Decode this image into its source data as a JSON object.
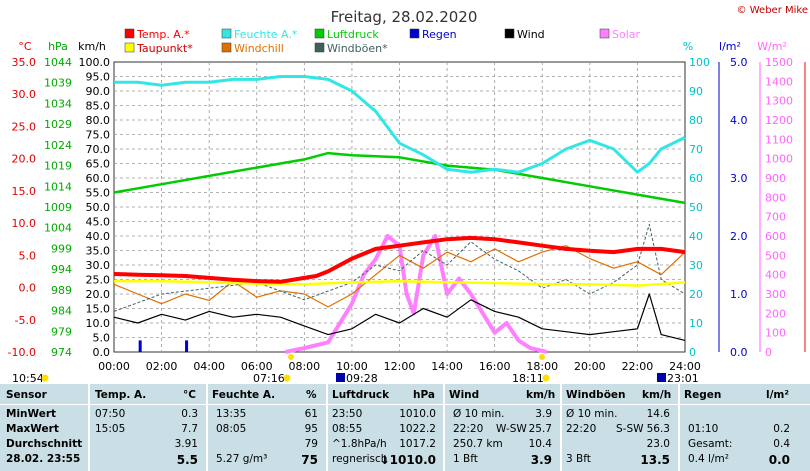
{
  "title": "Freitag, 28.02.2020",
  "copyright": "© Weber Mike",
  "chart_data": {
    "type": "line",
    "x_label": "time (hours)",
    "x_ticks": [
      "00:00",
      "02:00",
      "04:00",
      "06:00",
      "08:00",
      "10:00",
      "12:00",
      "14:00",
      "16:00",
      "18:00",
      "20:00",
      "22:00",
      "24:00"
    ],
    "axes": {
      "temp_c": {
        "label": "°C",
        "ticks": [
          "35.0",
          "30.0",
          "25.0",
          "20.0",
          "15.0",
          "10.0",
          "5.0",
          "0.0",
          "-5.0",
          "-10.0"
        ],
        "range": [
          -10,
          35
        ],
        "color": "#e00000"
      },
      "pressure_hpa": {
        "label": "hPa",
        "ticks": [
          "1044",
          "1039",
          "1034",
          "1029",
          "1024",
          "1019",
          "1014",
          "1009",
          "1004",
          "999",
          "994",
          "989",
          "984",
          "979",
          "974"
        ],
        "range": [
          974,
          1044
        ],
        "color": "#00aa00"
      },
      "wind_kmh": {
        "label": "km/h",
        "ticks": [
          "100.0",
          "95.0",
          "90.0",
          "85.0",
          "80.0",
          "75.0",
          "70.0",
          "65.0",
          "60.0",
          "55.0",
          "50.0",
          "45.0",
          "40.0",
          "35.0",
          "30.0",
          "25.0",
          "20.0",
          "15.0",
          "10.0",
          "5.0",
          "0.0"
        ],
        "range": [
          0,
          100
        ],
        "color": "#000000"
      },
      "humidity_pct": {
        "label": "%",
        "ticks": [
          "100",
          "90",
          "80",
          "70",
          "60",
          "50",
          "40",
          "30",
          "20",
          "10",
          "0"
        ],
        "range": [
          0,
          100
        ],
        "color": "#00c0d0"
      },
      "rain_lm2": {
        "label": "l/m²",
        "ticks": [
          "5.0",
          "4.0",
          "3.0",
          "2.0",
          "1.0",
          "0.0"
        ],
        "range": [
          0,
          5
        ],
        "color": "#0000cc"
      },
      "solar_wm2": {
        "label": "W/m²",
        "ticks": [
          "1500",
          "1400",
          "1300",
          "1200",
          "1100",
          "1000",
          "900",
          "800",
          "700",
          "600",
          "500",
          "400",
          "300",
          "200",
          "100",
          "0"
        ],
        "range": [
          0,
          1500
        ],
        "color": "#ff66ff"
      }
    },
    "legend": [
      {
        "name": "Temp. A.*",
        "color": "#ff0000"
      },
      {
        "name": "Feuchte A.*",
        "color": "#33e6e6"
      },
      {
        "name": "Luftdruck",
        "color": "#00cc00"
      },
      {
        "name": "Regen",
        "color": "#0000cc"
      },
      {
        "name": "Wind",
        "color": "#000000"
      },
      {
        "name": "Solar",
        "color": "#ff80ff"
      },
      {
        "name": "Taupunkt*",
        "color": "#ffff00"
      },
      {
        "name": "Windchill",
        "color": "#e07000"
      },
      {
        "name": "Windböen*",
        "color": "#406060"
      }
    ],
    "series": [
      {
        "name": "Temp. A.*",
        "axis": "temp_c",
        "color": "#ff0000",
        "points": [
          [
            0,
            2.1
          ],
          [
            1,
            2.0
          ],
          [
            2,
            1.9
          ],
          [
            3,
            1.8
          ],
          [
            4,
            1.5
          ],
          [
            5,
            1.2
          ],
          [
            6,
            1.0
          ],
          [
            7,
            0.9
          ],
          [
            8,
            1.5
          ],
          [
            8.5,
            1.8
          ],
          [
            9,
            2.5
          ],
          [
            10,
            4.5
          ],
          [
            11,
            6.0
          ],
          [
            12,
            6.5
          ],
          [
            13,
            7.0
          ],
          [
            14,
            7.5
          ],
          [
            15,
            7.7
          ],
          [
            16,
            7.5
          ],
          [
            17,
            7.0
          ],
          [
            18,
            6.5
          ],
          [
            19,
            6.0
          ],
          [
            20,
            5.7
          ],
          [
            21,
            5.5
          ],
          [
            22,
            6.0
          ],
          [
            23,
            6.0
          ],
          [
            24,
            5.5
          ]
        ]
      },
      {
        "name": "Feuchte A.*",
        "axis": "humidity_pct",
        "color": "#33e6e6",
        "points": [
          [
            0,
            93
          ],
          [
            1,
            93
          ],
          [
            2,
            92
          ],
          [
            3,
            93
          ],
          [
            4,
            93
          ],
          [
            5,
            94
          ],
          [
            6,
            94
          ],
          [
            7,
            95
          ],
          [
            8,
            95
          ],
          [
            9,
            94
          ],
          [
            10,
            90
          ],
          [
            11,
            83
          ],
          [
            12,
            72
          ],
          [
            13,
            68
          ],
          [
            14,
            63
          ],
          [
            15,
            62
          ],
          [
            16,
            63
          ],
          [
            17,
            62
          ],
          [
            18,
            65
          ],
          [
            19,
            70
          ],
          [
            20,
            73
          ],
          [
            21,
            70
          ],
          [
            22,
            62
          ],
          [
            22.5,
            65
          ],
          [
            23,
            70
          ],
          [
            24,
            74
          ]
        ]
      },
      {
        "name": "Luftdruck",
        "axis": "pressure_hpa",
        "color": "#00cc00",
        "points": [
          [
            0,
            1012.5
          ],
          [
            2,
            1014.5
          ],
          [
            4,
            1016.5
          ],
          [
            6,
            1018.5
          ],
          [
            8,
            1020.5
          ],
          [
            9,
            1022
          ],
          [
            10,
            1021.5
          ],
          [
            12,
            1021
          ],
          [
            14,
            1019
          ],
          [
            16,
            1018
          ],
          [
            18,
            1016
          ],
          [
            20,
            1014
          ],
          [
            22,
            1012
          ],
          [
            24,
            1010
          ]
        ]
      },
      {
        "name": "Taupunkt*",
        "axis": "temp_c",
        "color": "#ffff00",
        "points": [
          [
            0,
            1.0
          ],
          [
            2,
            1.0
          ],
          [
            4,
            0.8
          ],
          [
            6,
            0.6
          ],
          [
            8,
            0.5
          ],
          [
            10,
            0.8
          ],
          [
            12,
            1.0
          ],
          [
            14,
            0.8
          ],
          [
            16,
            0.7
          ],
          [
            18,
            0.5
          ],
          [
            20,
            0.5
          ],
          [
            22,
            0.3
          ],
          [
            24,
            0.8
          ]
        ]
      },
      {
        "name": "Windchill",
        "axis": "temp_c",
        "color": "#e07000",
        "points": [
          [
            0,
            0.5
          ],
          [
            1,
            -1.0
          ],
          [
            2,
            -2.5
          ],
          [
            3,
            -1.0
          ],
          [
            4,
            -2.0
          ],
          [
            5,
            1.0
          ],
          [
            6,
            -1.5
          ],
          [
            7,
            -0.5
          ],
          [
            8,
            -1.0
          ],
          [
            9,
            -3.0
          ],
          [
            10,
            -1.0
          ],
          [
            11,
            2.0
          ],
          [
            12,
            5.0
          ],
          [
            13,
            3.0
          ],
          [
            14,
            5.5
          ],
          [
            15,
            4.0
          ],
          [
            16,
            6.0
          ],
          [
            17,
            4.0
          ],
          [
            18,
            5.5
          ],
          [
            19,
            6.5
          ],
          [
            20,
            4.5
          ],
          [
            21,
            3.0
          ],
          [
            22,
            4.0
          ],
          [
            23,
            2.0
          ],
          [
            24,
            5.5
          ]
        ]
      },
      {
        "name": "Windböen*",
        "axis": "wind_kmh",
        "color": "#406060",
        "points": [
          [
            0,
            14
          ],
          [
            2,
            20
          ],
          [
            4,
            22
          ],
          [
            6,
            24
          ],
          [
            8,
            18
          ],
          [
            10,
            24
          ],
          [
            11,
            30
          ],
          [
            12,
            28
          ],
          [
            13,
            35
          ],
          [
            14,
            30
          ],
          [
            15,
            38
          ],
          [
            16,
            32
          ],
          [
            17,
            28
          ],
          [
            18,
            22
          ],
          [
            19,
            25
          ],
          [
            20,
            20
          ],
          [
            21,
            24
          ],
          [
            22,
            30
          ],
          [
            22.5,
            44
          ],
          [
            23,
            25
          ],
          [
            24,
            20
          ]
        ]
      },
      {
        "name": "Wind",
        "axis": "wind_kmh",
        "color": "#000000",
        "points": [
          [
            0,
            12
          ],
          [
            1,
            10
          ],
          [
            2,
            13
          ],
          [
            3,
            11
          ],
          [
            4,
            14
          ],
          [
            5,
            12
          ],
          [
            6,
            13
          ],
          [
            7,
            12
          ],
          [
            8,
            9
          ],
          [
            9,
            6
          ],
          [
            10,
            8
          ],
          [
            11,
            13
          ],
          [
            12,
            10
          ],
          [
            13,
            15
          ],
          [
            14,
            12
          ],
          [
            15,
            18
          ],
          [
            16,
            14
          ],
          [
            17,
            12
          ],
          [
            18,
            8
          ],
          [
            19,
            7
          ],
          [
            20,
            6
          ],
          [
            21,
            7
          ],
          [
            22,
            8
          ],
          [
            22.5,
            20
          ],
          [
            23,
            6
          ],
          [
            24,
            4
          ]
        ]
      },
      {
        "name": "Solar",
        "axis": "solar_wm2",
        "color": "#ff80ff",
        "points": [
          [
            7.2,
            0
          ],
          [
            8,
            20
          ],
          [
            9,
            50
          ],
          [
            9.5,
            150
          ],
          [
            10,
            250
          ],
          [
            10.5,
            400
          ],
          [
            11,
            480
          ],
          [
            11.5,
            600
          ],
          [
            12,
            550
          ],
          [
            12.3,
            300
          ],
          [
            12.6,
            200
          ],
          [
            13,
            500
          ],
          [
            13.5,
            600
          ],
          [
            14,
            300
          ],
          [
            14.5,
            380
          ],
          [
            15,
            300
          ],
          [
            15.5,
            200
          ],
          [
            16,
            100
          ],
          [
            16.5,
            150
          ],
          [
            17,
            60
          ],
          [
            17.5,
            20
          ],
          [
            18.2,
            0
          ]
        ]
      }
    ],
    "rain_bars": [
      {
        "hour": 1.1,
        "value": 0.2
      },
      {
        "hour": 3.05,
        "value": 0.2
      }
    ],
    "sun_markers": {
      "sunrise": "07:16",
      "sunset": "18:11",
      "moonrise": "09:28",
      "moonset": "23:01",
      "daylength": "10:54"
    }
  },
  "table": {
    "headers": {
      "sensor": "Sensor",
      "temp": "Temp. A.",
      "temp_unit": "°C",
      "hum": "Feuchte A.",
      "hum_unit": "%",
      "press": "Luftdruck",
      "press_unit": "hPa",
      "wind": "Wind",
      "wind_unit": "km/h",
      "gust": "Windböen",
      "gust_unit": "km/h",
      "rain": "Regen",
      "rain_unit": "l/m²"
    },
    "rows": [
      {
        "label": "MinWert",
        "temp_t": "07:50",
        "temp_v": "0.3",
        "hum_t": "13:35",
        "hum_v": "61",
        "press_t": "23:50",
        "press_v": "1010.0",
        "wind_t": "Ø 10 min.",
        "wind_v": "3.9",
        "gust_t": "Ø 10 min.",
        "gust_v": "14.6",
        "rain_t": "",
        "rain_v": ""
      },
      {
        "label": "MaxWert",
        "temp_t": "15:05",
        "temp_v": "7.7",
        "hum_t": "08:05",
        "hum_v": "95",
        "press_t": "08:55",
        "press_v": "1022.2",
        "wind_t": "22:20",
        "wind_d": "W-SW",
        "wind_v": "25.7",
        "gust_t": "22:20",
        "gust_d": "S-SW",
        "gust_v": "56.3",
        "rain_t": "01:10",
        "rain_v": "0.2"
      },
      {
        "label": "Durchschnitt",
        "temp_t": "",
        "temp_v": "3.91",
        "hum_t": "",
        "hum_v": "79",
        "press_t": "^1.8hPa/h",
        "press_v": "1017.2",
        "wind_t": "250.7 km",
        "wind_v": "10.4",
        "gust_t": "",
        "gust_v": "23.0",
        "rain_t": "Gesamt:",
        "rain_v": "0.4"
      },
      {
        "label": "28.02. 23:55",
        "temp_t": "",
        "temp_v": "5.5",
        "hum_t": "5.27 g/m³",
        "hum_v": "75",
        "press_t": "regnerisch",
        "press_v": "↓1010.0",
        "wind_t": "1 Bft",
        "wind_v": "3.9",
        "gust_t": "3 Bft",
        "gust_v": "13.5",
        "rain_t": "0.4 l/m²",
        "rain_v": "0.0"
      }
    ]
  }
}
